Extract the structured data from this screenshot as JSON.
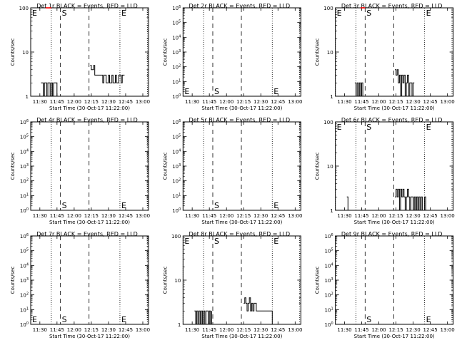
{
  "colors": {
    "events": "#000000",
    "lld": "#ff0000",
    "background": "#ffffff"
  },
  "chart_data": [
    {
      "type": "line",
      "title": "Det 1r BLACK = Events, RED = LLD",
      "xlabel": "Start Time (30-Oct-17 11:22:00)",
      "ylabel": "Counts/sec",
      "yscale": "log",
      "xlim": [
        "11:22",
        "13:05"
      ],
      "ylim": [
        1,
        100
      ],
      "xticks": [
        "11:30",
        "11:45",
        "12:00",
        "12:15",
        "12:30",
        "12:45",
        "13:00"
      ],
      "yticks": [
        "1",
        "10",
        "100"
      ],
      "markers": [
        {
          "label": "E",
          "time": "11:22",
          "style": "dotted"
        },
        {
          "label": "",
          "time": "11:40",
          "style": "dotted"
        },
        {
          "label": "S",
          "time": "11:48",
          "style": "dashed"
        },
        {
          "label": "",
          "time": "12:13",
          "style": "dashed"
        },
        {
          "label": "E",
          "time": "12:40",
          "style": "dotted"
        },
        {
          "label": "",
          "time": "13:04",
          "style": "dotted"
        }
      ],
      "series": [
        {
          "values": [
            [
              "11:31",
              2
            ],
            [
              "11:33",
              1
            ],
            [
              "11:34",
              2
            ],
            [
              "11:36",
              1
            ],
            [
              "11:37",
              2
            ],
            [
              "11:39",
              1
            ],
            [
              "11:40",
              2
            ],
            [
              "11:41",
              1
            ],
            [
              "11:42",
              2
            ],
            [
              "11:43",
              2
            ],
            [
              "11:45",
              1
            ],
            [
              "12:14",
              5
            ],
            [
              "12:15",
              4
            ],
            [
              "12:17",
              5
            ],
            [
              "12:18",
              3
            ],
            [
              "12:20",
              3
            ],
            [
              "12:22",
              3
            ],
            [
              "12:24",
              3
            ],
            [
              "12:25",
              2
            ],
            [
              "12:26",
              3
            ],
            [
              "12:28",
              2
            ],
            [
              "12:30",
              3
            ],
            [
              "12:31",
              2
            ],
            [
              "12:33",
              3
            ],
            [
              "12:34",
              2
            ],
            [
              "12:36",
              3
            ],
            [
              "12:37",
              2
            ],
            [
              "12:39",
              3
            ],
            [
              "12:41",
              2
            ],
            [
              "12:42",
              3
            ],
            [
              "12:44",
              3
            ]
          ]
        },
        {
          "values": [
            [
              "11:35",
              100
            ],
            [
              "11:40",
              100
            ]
          ]
        }
      ]
    },
    {
      "type": "line",
      "title": "Det 2r BLACK = Events, RED = LLD",
      "xlabel": "Start Time (30-Oct-17 11:22:00)",
      "ylabel": "Counts/sec",
      "yscale": "log",
      "xlim": [
        "11:22",
        "13:05"
      ],
      "ylim": [
        1,
        1000000
      ],
      "xticks": [
        "11:30",
        "11:45",
        "12:00",
        "12:15",
        "12:30",
        "12:45",
        "13:00"
      ],
      "yticks": [
        "10^0",
        "10^1",
        "10^2",
        "10^3",
        "10^4",
        "10^5",
        "10^6"
      ],
      "markers": [
        {
          "label": "E",
          "time": "11:22",
          "style": "dotted"
        },
        {
          "label": "",
          "time": "11:40",
          "style": "dotted"
        },
        {
          "label": "S",
          "time": "11:48",
          "style": "dashed"
        },
        {
          "label": "",
          "time": "12:13",
          "style": "dashed"
        },
        {
          "label": "E",
          "time": "12:40",
          "style": "dotted"
        },
        {
          "label": "",
          "time": "13:04",
          "style": "dotted"
        }
      ],
      "series": []
    },
    {
      "type": "line",
      "title": "Det 3r BLACK = Events, RED = LLD",
      "xlabel": "Start Time (30-Oct-17 11:22:00)",
      "ylabel": "Counts/sec",
      "yscale": "log",
      "xlim": [
        "11:22",
        "13:05"
      ],
      "ylim": [
        1,
        100
      ],
      "xticks": [
        "11:30",
        "11:45",
        "12:00",
        "12:15",
        "12:30",
        "12:45",
        "13:00"
      ],
      "yticks": [
        "1",
        "10",
        "100"
      ],
      "markers": [
        {
          "label": "E",
          "time": "11:22",
          "style": "dotted"
        },
        {
          "label": "",
          "time": "11:40",
          "style": "dotted"
        },
        {
          "label": "S",
          "time": "11:48",
          "style": "dashed"
        },
        {
          "label": "",
          "time": "12:13",
          "style": "dashed"
        },
        {
          "label": "E",
          "time": "12:40",
          "style": "dotted"
        },
        {
          "label": "",
          "time": "13:04",
          "style": "dotted"
        }
      ],
      "series": [
        {
          "values": [
            [
              "11:39",
              2
            ],
            [
              "11:40",
              1
            ],
            [
              "11:41",
              2
            ],
            [
              "11:42",
              1
            ],
            [
              "11:43",
              2
            ],
            [
              "11:44",
              1
            ],
            [
              "11:45",
              2
            ],
            [
              "11:46",
              1
            ],
            [
              "12:14",
              4
            ],
            [
              "12:15",
              3
            ],
            [
              "12:16",
              4
            ],
            [
              "12:17",
              2
            ],
            [
              "12:18",
              3
            ],
            [
              "12:19",
              1
            ],
            [
              "12:20",
              3
            ],
            [
              "12:21",
              2
            ],
            [
              "12:22",
              3
            ],
            [
              "12:23",
              1
            ],
            [
              "12:24",
              2
            ],
            [
              "12:25",
              3
            ],
            [
              "12:26",
              1
            ],
            [
              "12:27",
              2
            ],
            [
              "12:28",
              2
            ],
            [
              "12:29",
              1
            ],
            [
              "12:30",
              2
            ],
            [
              "12:31",
              2
            ]
          ]
        },
        {
          "values": [
            [
              "11:44",
              100
            ],
            [
              "11:48",
              100
            ]
          ]
        }
      ]
    },
    {
      "type": "line",
      "title": "Det 4r BLACK = Events, RED = LLD",
      "xlabel": "Start Time (30-Oct-17 11:22:00)",
      "ylabel": "Counts/sec",
      "yscale": "log",
      "xlim": [
        "11:22",
        "13:05"
      ],
      "ylim": [
        1,
        1000000
      ],
      "xticks": [
        "11:30",
        "11:45",
        "12:00",
        "12:15",
        "12:30",
        "12:45",
        "13:00"
      ],
      "yticks": [
        "10^0",
        "10^1",
        "10^2",
        "10^3",
        "10^4",
        "10^5",
        "10^6"
      ],
      "markers": [
        {
          "label": "",
          "time": "11:22",
          "style": "dotted"
        },
        {
          "label": "",
          "time": "11:40",
          "style": "dotted"
        },
        {
          "label": "S",
          "time": "11:48",
          "style": "dashed"
        },
        {
          "label": "",
          "time": "12:13",
          "style": "dashed"
        },
        {
          "label": "E",
          "time": "12:40",
          "style": "dotted"
        },
        {
          "label": "",
          "time": "13:04",
          "style": "dotted"
        }
      ],
      "series": []
    },
    {
      "type": "line",
      "title": "Det 5r BLACK = Events, RED = LLD",
      "xlabel": "Start Time (30-Oct-17 11:22:00)",
      "ylabel": "Counts/sec",
      "yscale": "log",
      "xlim": [
        "11:22",
        "13:05"
      ],
      "ylim": [
        1,
        1000000
      ],
      "xticks": [
        "11:30",
        "11:45",
        "12:00",
        "12:15",
        "12:30",
        "12:45",
        "13:00"
      ],
      "yticks": [
        "10^0",
        "10^1",
        "10^2",
        "10^3",
        "10^4",
        "10^5",
        "10^6"
      ],
      "markers": [
        {
          "label": "",
          "time": "11:22",
          "style": "dotted"
        },
        {
          "label": "",
          "time": "11:40",
          "style": "dotted"
        },
        {
          "label": "S",
          "time": "11:48",
          "style": "dashed"
        },
        {
          "label": "",
          "time": "12:13",
          "style": "dashed"
        },
        {
          "label": "E",
          "time": "12:40",
          "style": "dotted"
        },
        {
          "label": "",
          "time": "13:04",
          "style": "dotted"
        }
      ],
      "series": []
    },
    {
      "type": "line",
      "title": "Det 6r BLACK = Events, RED = LLD",
      "xlabel": "Start Time (30-Oct-17 11:22:00)",
      "ylabel": "Counts/sec",
      "yscale": "log",
      "xlim": [
        "11:22",
        "13:05"
      ],
      "ylim": [
        1,
        100
      ],
      "xticks": [
        "11:30",
        "11:45",
        "12:00",
        "12:15",
        "12:30",
        "12:45",
        "13:00"
      ],
      "yticks": [
        "1",
        "10",
        "100"
      ],
      "markers": [
        {
          "label": "E",
          "time": "11:22",
          "style": "dotted"
        },
        {
          "label": "",
          "time": "11:40",
          "style": "dotted"
        },
        {
          "label": "S",
          "time": "11:48",
          "style": "dashed"
        },
        {
          "label": "",
          "time": "12:13",
          "style": "dashed"
        },
        {
          "label": "E",
          "time": "12:40",
          "style": "dotted"
        },
        {
          "label": "",
          "time": "13:04",
          "style": "dotted"
        }
      ],
      "series": [
        {
          "values": [
            [
              "11:32",
              2
            ],
            [
              "11:33",
              1
            ],
            [
              "12:14",
              2
            ],
            [
              "12:15",
              3
            ],
            [
              "12:16",
              2
            ],
            [
              "12:17",
              3
            ],
            [
              "12:18",
              1
            ],
            [
              "12:19",
              3
            ],
            [
              "12:20",
              2
            ],
            [
              "12:21",
              3
            ],
            [
              "12:22",
              2
            ],
            [
              "12:23",
              1
            ],
            [
              "12:24",
              2
            ],
            [
              "12:25",
              3
            ],
            [
              "12:26",
              2
            ],
            [
              "12:27",
              1
            ],
            [
              "12:28",
              2
            ],
            [
              "12:29",
              2
            ],
            [
              "12:30",
              1
            ],
            [
              "12:31",
              2
            ],
            [
              "12:32",
              1
            ],
            [
              "12:33",
              2
            ],
            [
              "12:34",
              1
            ],
            [
              "12:35",
              2
            ],
            [
              "12:36",
              1
            ],
            [
              "12:37",
              2
            ],
            [
              "12:38",
              1
            ],
            [
              "12:40",
              2
            ],
            [
              "12:41",
              1
            ]
          ]
        },
        {
          "values": [
            [
              "11:40",
              100
            ],
            [
              "11:48",
              100
            ]
          ]
        }
      ]
    },
    {
      "type": "line",
      "title": "Det 7r BLACK = Events, RED = LLD",
      "xlabel": "Start Time (30-Oct-17 11:22:00)",
      "ylabel": "Counts/sec",
      "yscale": "log",
      "xlim": [
        "11:22",
        "13:05"
      ],
      "ylim": [
        1,
        1000000
      ],
      "xticks": [
        "11:30",
        "11:45",
        "12:00",
        "12:15",
        "12:30",
        "12:45",
        "13:00"
      ],
      "yticks": [
        "10^0",
        "10^1",
        "10^2",
        "10^3",
        "10^4",
        "10^5",
        "10^6"
      ],
      "markers": [
        {
          "label": "E",
          "time": "11:22",
          "style": "dotted"
        },
        {
          "label": "",
          "time": "11:40",
          "style": "dotted"
        },
        {
          "label": "S",
          "time": "11:48",
          "style": "dashed"
        },
        {
          "label": "",
          "time": "12:13",
          "style": "dashed"
        },
        {
          "label": "E",
          "time": "12:40",
          "style": "dotted"
        },
        {
          "label": "",
          "time": "13:04",
          "style": "dotted"
        }
      ],
      "series": []
    },
    {
      "type": "line",
      "title": "Det 8r BLACK = Events, RED = LLD",
      "xlabel": "Start Time (30-Oct-17 11:22:00)",
      "ylabel": "Counts/sec",
      "yscale": "log",
      "xlim": [
        "11:22",
        "13:05"
      ],
      "ylim": [
        1,
        100
      ],
      "xticks": [
        "11:30",
        "11:45",
        "12:00",
        "12:15",
        "12:30",
        "12:45",
        "13:00"
      ],
      "yticks": [
        "1",
        "10",
        "100"
      ],
      "markers": [
        {
          "label": "E",
          "time": "11:22",
          "style": "dotted"
        },
        {
          "label": "",
          "time": "11:40",
          "style": "dotted"
        },
        {
          "label": "S",
          "time": "11:48",
          "style": "dashed"
        },
        {
          "label": "",
          "time": "12:13",
          "style": "dashed"
        },
        {
          "label": "E",
          "time": "12:40",
          "style": "dotted"
        },
        {
          "label": "",
          "time": "13:04",
          "style": "dotted"
        }
      ],
      "series": [
        {
          "values": [
            [
              "11:32",
              2
            ],
            [
              "11:33",
              1
            ],
            [
              "11:34",
              2
            ],
            [
              "11:35",
              1
            ],
            [
              "11:36",
              2
            ],
            [
              "11:37",
              1
            ],
            [
              "11:38",
              2
            ],
            [
              "11:39",
              1
            ],
            [
              "11:40",
              2
            ],
            [
              "11:41",
              1
            ],
            [
              "11:42",
              2
            ],
            [
              "11:43",
              2
            ],
            [
              "11:44",
              1
            ],
            [
              "11:45",
              2
            ],
            [
              "11:46",
              1
            ],
            [
              "11:47",
              2
            ],
            [
              "12:15",
              3
            ],
            [
              "12:16",
              4
            ],
            [
              "12:17",
              3
            ],
            [
              "12:18",
              2
            ],
            [
              "12:19",
              3
            ],
            [
              "12:20",
              4
            ],
            [
              "12:21",
              2
            ],
            [
              "12:22",
              3
            ],
            [
              "12:23",
              2
            ],
            [
              "12:24",
              3
            ],
            [
              "12:26",
              2
            ],
            [
              "12:28",
              2
            ],
            [
              "12:30",
              2
            ],
            [
              "12:32",
              2
            ],
            [
              "12:34",
              2
            ],
            [
              "12:36",
              2
            ],
            [
              "12:38",
              2
            ],
            [
              "12:40",
              1
            ]
          ]
        }
      ]
    },
    {
      "type": "line",
      "title": "Det 9r BLACK = Events, RED = LLD",
      "xlabel": "Start Time (30-Oct-17 11:22:00)",
      "ylabel": "Counts/sec",
      "yscale": "log",
      "xlim": [
        "11:22",
        "13:05"
      ],
      "ylim": [
        1,
        1000000
      ],
      "xticks": [
        "11:30",
        "11:45",
        "12:00",
        "12:15",
        "12:30",
        "12:45",
        "13:00"
      ],
      "yticks": [
        "10^0",
        "10^1",
        "10^2",
        "10^3",
        "10^4",
        "10^5",
        "10^6"
      ],
      "markers": [
        {
          "label": "",
          "time": "11:22",
          "style": "dotted"
        },
        {
          "label": "",
          "time": "11:40",
          "style": "dotted"
        },
        {
          "label": "S",
          "time": "11:48",
          "style": "dashed"
        },
        {
          "label": "",
          "time": "12:13",
          "style": "dashed"
        },
        {
          "label": "E",
          "time": "12:40",
          "style": "dotted"
        },
        {
          "label": "",
          "time": "13:04",
          "style": "dotted"
        }
      ],
      "series": []
    }
  ]
}
